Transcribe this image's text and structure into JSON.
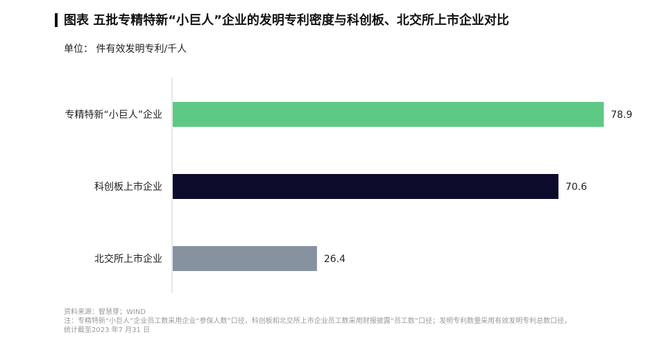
{
  "chart_data": {
    "type": "bar",
    "orientation": "horizontal",
    "title": "图表 五批专精特新“小巨人”企业的发明专利密度与科创板、北交所上市企业对比",
    "unit": "单位： 件有效发明专利/千人",
    "categories": [
      "专精特新“小巨人”企业",
      "科创板上市企业",
      "北交所上市企业"
    ],
    "values": [
      78.9,
      70.6,
      26.4
    ],
    "value_labels": [
      "78.9",
      "70.6",
      "26.4"
    ],
    "colors": [
      "#5ec985",
      "#0b0b2b",
      "#8692a0"
    ],
    "xlim": [
      0,
      80
    ],
    "grid": false,
    "legend": "none"
  },
  "notes": {
    "source": "资料来源：智慧芽；WIND",
    "note": "注：专精特新“小巨人”企业员工数采用企业“参保人数”口径，科创板和北交所上市企业员工数采用财报披露“员工数”口径；发明专利数量采用有效发明专利总数口径，统计截至2023 年7 月31 日"
  }
}
